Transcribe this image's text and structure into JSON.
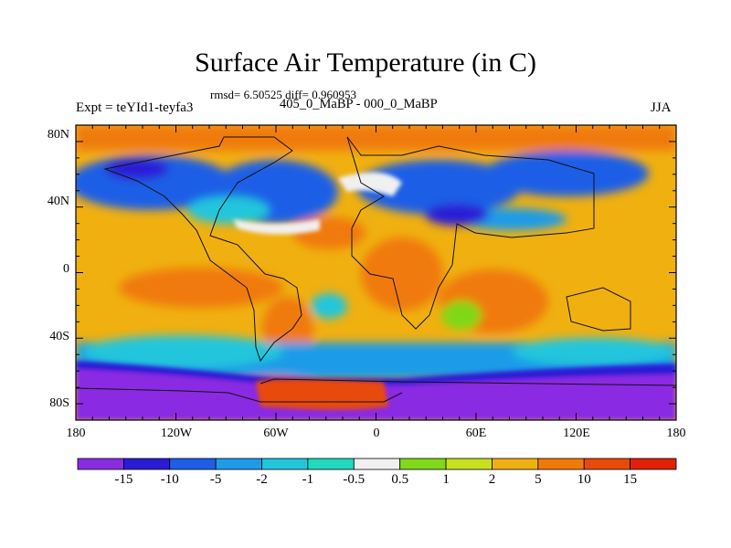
{
  "header": {
    "title": "Surface Air Temperature (in C)",
    "stats": "rmsd= 6.50525 diff= 0.960953",
    "experiment": "Expt = teYId1-teyfa3",
    "period": "405_0_MaBP - 000_0_MaBP",
    "season": "JJA"
  },
  "map": {
    "lat_labels": [
      "80N",
      "40N",
      "0",
      "40S",
      "80S"
    ],
    "lon_labels": [
      "180",
      "120W",
      "60W",
      "0",
      "60E",
      "120E",
      "180"
    ]
  },
  "colorbar": {
    "labels": [
      "-15",
      "-10",
      "-5",
      "-2",
      "-1",
      "-0.5",
      "0.5",
      "1",
      "2",
      "5",
      "10",
      "15"
    ],
    "colors": [
      "#8a2be2",
      "#2a1ad6",
      "#1e5ee6",
      "#1e9be8",
      "#22c6dc",
      "#20d9c0",
      "#f0f0f0",
      "#7fd818",
      "#c8e020",
      "#f0b010",
      "#f07a08",
      "#e84a08",
      "#e02008"
    ]
  }
}
